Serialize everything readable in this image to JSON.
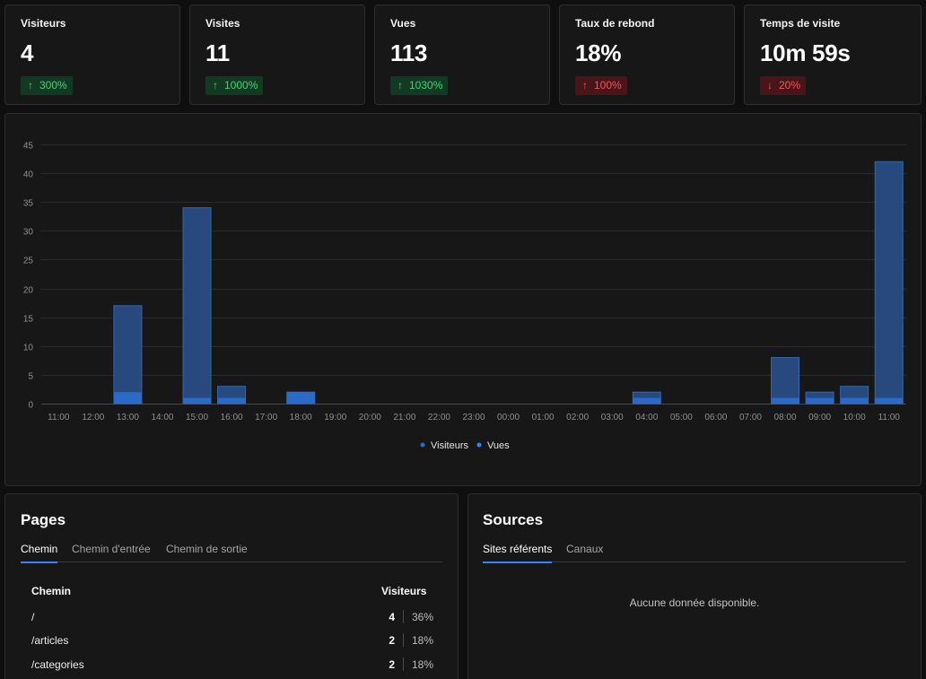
{
  "metrics": [
    {
      "title": "Visiteurs",
      "value": "4",
      "change": "300%",
      "direction": "up"
    },
    {
      "title": "Visites",
      "value": "11",
      "change": "1000%",
      "direction": "up"
    },
    {
      "title": "Vues",
      "value": "113",
      "change": "1030%",
      "direction": "up"
    },
    {
      "title": "Taux de rebond",
      "value": "18%",
      "change": "100%",
      "direction": "up",
      "status": "bad"
    },
    {
      "title": "Temps de visite",
      "value": "10m 59s",
      "change": "20%",
      "direction": "down",
      "status": "bad"
    }
  ],
  "colors": {
    "page_bg": "#0f0f0f",
    "card_bg": "#171717",
    "border": "#2e2e2e",
    "positive": "#3fd574",
    "positive_bg": "#123a22",
    "negative": "#f2545c",
    "negative_bg": "#4a1519",
    "visitors_bar": "#2a6bc9",
    "views_bar": "#27497e",
    "views_border": "#3367b0",
    "accent": "#3b82f6"
  },
  "chart_data": {
    "type": "bar",
    "stacked": true,
    "categories": [
      "11:00",
      "12:00",
      "13:00",
      "14:00",
      "15:00",
      "16:00",
      "17:00",
      "18:00",
      "19:00",
      "20:00",
      "21:00",
      "22:00",
      "23:00",
      "00:00",
      "01:00",
      "02:00",
      "03:00",
      "04:00",
      "05:00",
      "06:00",
      "07:00",
      "08:00",
      "09:00",
      "10:00",
      "11:00"
    ],
    "series": [
      {
        "name": "Visiteurs",
        "values": [
          0,
          0,
          2,
          0,
          1,
          1,
          0,
          2,
          0,
          0,
          0,
          0,
          0,
          0,
          0,
          0,
          0,
          1,
          0,
          0,
          0,
          1,
          1,
          1,
          1
        ]
      },
      {
        "name": "Vues",
        "values": [
          0,
          0,
          17,
          0,
          34,
          3,
          0,
          2,
          0,
          0,
          0,
          0,
          0,
          0,
          0,
          0,
          0,
          2,
          0,
          0,
          0,
          8,
          2,
          3,
          42
        ]
      }
    ],
    "y_ticks": [
      0,
      5,
      10,
      15,
      20,
      25,
      30,
      35,
      40,
      45
    ],
    "ylim": [
      0,
      45
    ],
    "grid": true,
    "legend": "bottom-center"
  },
  "pages": {
    "title": "Pages",
    "tabs": [
      "Chemin",
      "Chemin d'entrée",
      "Chemin de sortie"
    ],
    "active_tab": 0,
    "columns": {
      "path": "Chemin",
      "visitors": "Visiteurs"
    },
    "rows": [
      {
        "path": "/",
        "count": "4",
        "pct": "36%"
      },
      {
        "path": "/articles",
        "count": "2",
        "pct": "18%"
      },
      {
        "path": "/categories",
        "count": "2",
        "pct": "18%"
      }
    ]
  },
  "sources": {
    "title": "Sources",
    "tabs": [
      "Sites référents",
      "Canaux"
    ],
    "active_tab": 0,
    "empty_message": "Aucune donnée disponible."
  }
}
